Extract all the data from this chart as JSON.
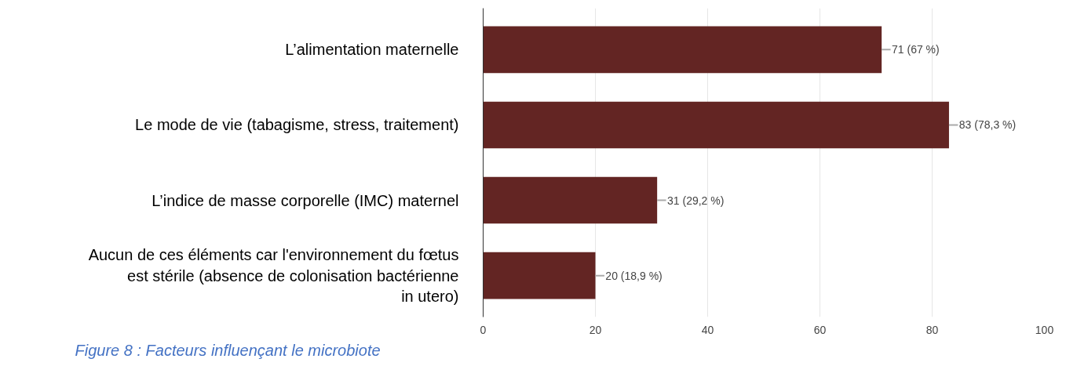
{
  "chart_data": {
    "type": "bar",
    "orientation": "horizontal",
    "categories": [
      "L’alimentation maternelle",
      "Le mode de vie (tabagisme, stress, traitement)",
      "L’indice de masse corporelle (IMC) maternel",
      "Aucun de ces éléments car l'environnement du fœtus est stérile (absence de colonisation bactérienne in utero)"
    ],
    "values": [
      71,
      83,
      31,
      20
    ],
    "value_labels": [
      "71 (67 %)",
      "83 (78,3 %)",
      "31 (29,2 %)",
      "20 (18,9 %)"
    ],
    "color": "#632523",
    "xlim": [
      0,
      100
    ],
    "xticks": [
      0,
      20,
      40,
      60,
      80,
      100
    ],
    "grid": "x",
    "annotations": [
      "Figure 8 : Facteurs influençant le microbiote"
    ]
  }
}
